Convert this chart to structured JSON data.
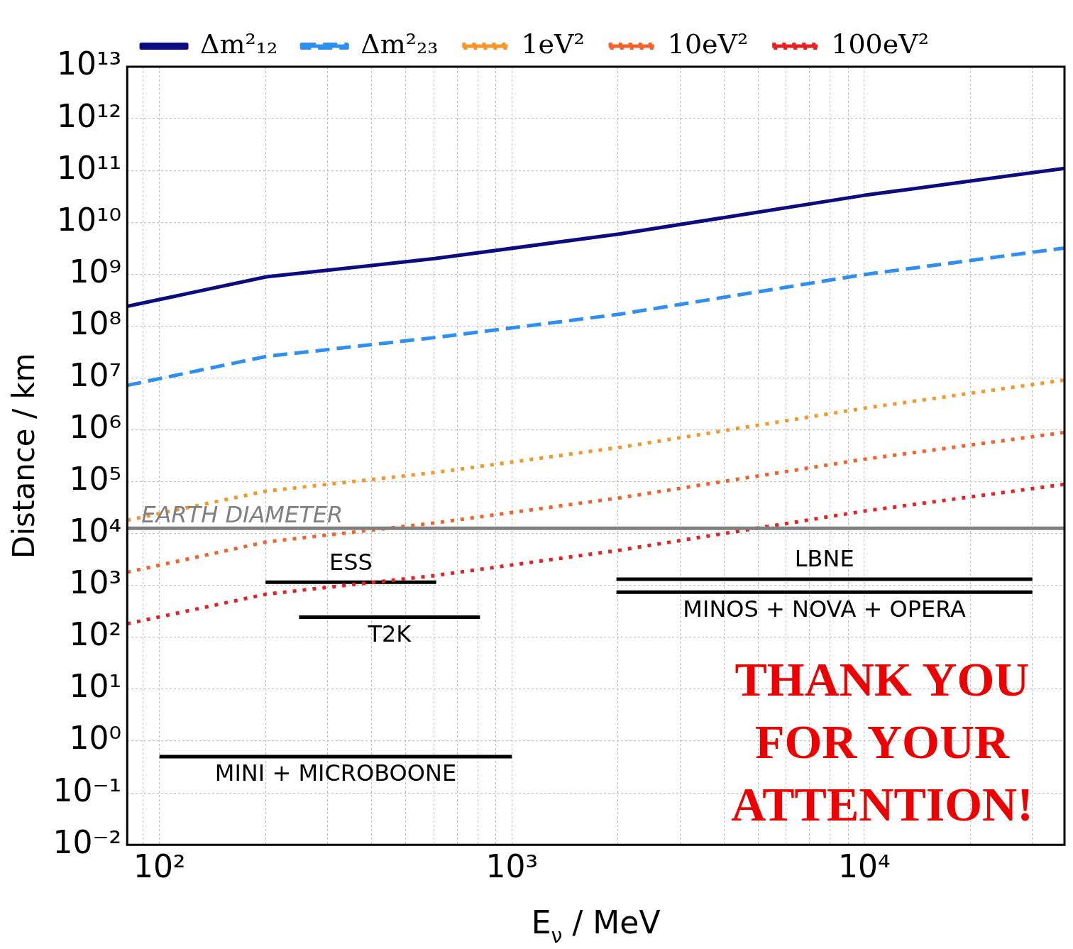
{
  "chart_data": {
    "type": "line",
    "xlabel": "E$_{ν}$ / MeV",
    "ylabel": "Distance / km",
    "log": "xy",
    "grid": true,
    "legend": "top",
    "marker": "none",
    "xlim": [
      81,
      37000
    ],
    "ylim": [
      0.01,
      10000000000000.0
    ],
    "xticks": [
      {
        "value": 90,
        "label": null
      },
      {
        "value": 100,
        "label": "10²"
      },
      {
        "value": 200,
        "label": null
      },
      {
        "value": 300,
        "label": null
      },
      {
        "value": 400,
        "label": null
      },
      {
        "value": 500,
        "label": null
      },
      {
        "value": 600,
        "label": null
      },
      {
        "value": 700,
        "label": null
      },
      {
        "value": 800,
        "label": null
      },
      {
        "value": 900,
        "label": null
      },
      {
        "value": 1000,
        "label": "10³"
      },
      {
        "value": 2000,
        "label": null
      },
      {
        "value": 3000,
        "label": null
      },
      {
        "value": 4000,
        "label": null
      },
      {
        "value": 5000,
        "label": null
      },
      {
        "value": 6000,
        "label": null
      },
      {
        "value": 7000,
        "label": null
      },
      {
        "value": 8000,
        "label": null
      },
      {
        "value": 9000,
        "label": null
      },
      {
        "value": 10000,
        "label": "10⁴"
      },
      {
        "value": 20000,
        "label": null
      },
      {
        "value": 30000,
        "label": null
      }
    ],
    "yticks": [
      {
        "value": 0.01,
        "label": "10⁻²"
      },
      {
        "value": 0.1,
        "label": "10⁻¹"
      },
      {
        "value": 1,
        "label": "10⁰"
      },
      {
        "value": 10,
        "label": "10¹"
      },
      {
        "value": 100,
        "label": "10²"
      },
      {
        "value": 1000,
        "label": "10³"
      },
      {
        "value": 10000,
        "label": "10⁴"
      },
      {
        "value": 100000,
        "label": "10⁵"
      },
      {
        "value": 1000000,
        "label": "10⁶"
      },
      {
        "value": 10000000,
        "label": "10⁷"
      },
      {
        "value": 100000000,
        "label": "10⁸"
      },
      {
        "value": 1000000000,
        "label": "10⁹"
      },
      {
        "value": 10000000000,
        "label": "10¹⁰"
      },
      {
        "value": 100000000000,
        "label": "10¹¹"
      },
      {
        "value": 1000000000000,
        "label": "10¹²"
      },
      {
        "value": 10000000000000,
        "label": "10¹³"
      }
    ],
    "x": [
      81,
      201,
      604,
      2030,
      4500,
      9950,
      37000
    ],
    "series": [
      {
        "name": "Δm²₁₂",
        "color": "#0c0c80",
        "line_style": "solid",
        "values": [
          240000000.0,
          890000000.0,
          2000000000.0,
          6000000000.0,
          14000000000.0,
          33000000000.0,
          110000000000.0
        ]
      },
      {
        "name": "Δm²₂₃",
        "color": "#2f8ff0",
        "line_style": "dashed",
        "values": [
          7200000.0,
          26000000.0,
          60000000.0,
          170000000.0,
          null,
          980000000.0,
          3200000000.0
        ]
      },
      {
        "name": "1eV²",
        "color": "#f5962a",
        "line_style": "dotted",
        "values": [
          18000.0,
          66000.0,
          150000.0,
          460000.0,
          null,
          2600000.0,
          9100000.0
        ]
      },
      {
        "name": "10eV²",
        "color": "#f2622a",
        "line_style": "dotted",
        "values": [
          1800.0,
          6900.0,
          16000.0,
          49000.0,
          null,
          270000.0,
          890000.0
        ]
      },
      {
        "name": "100eV²",
        "color": "#e52222",
        "line_style": "dotted",
        "values": [
          182,
          680,
          1550,
          4800,
          null,
          27000.0,
          89000.0
        ]
      },
      {
        "name": "ESS",
        "color": "#000000",
        "line_style": "solid",
        "x": [
          200,
          610
        ],
        "values": [
          1150,
          1150
        ]
      },
      {
        "name": "T2K",
        "color": "#000000",
        "line_style": "solid",
        "x": [
          249,
          812
        ],
        "values": [
          245,
          245
        ]
      },
      {
        "name": "LBNE",
        "color": "#000000",
        "line_style": "solid",
        "x": [
          1980,
          30000
        ],
        "values": [
          1320,
          1320
        ]
      },
      {
        "name": "MINOS + NOVA + OPERA",
        "color": "#000000",
        "line_style": "solid",
        "x": [
          1980,
          30000
        ],
        "values": [
          740,
          740
        ]
      },
      {
        "name": "MINI + MICROBOONE",
        "color": "#000000",
        "line_style": "solid",
        "x": [
          100,
          1000
        ],
        "values": [
          0.5,
          0.5
        ]
      }
    ],
    "ref_lines": [
      {
        "axis": "y",
        "value": 12700,
        "label": "EARTH DIAMETER",
        "color": "#808080"
      }
    ],
    "annotations": [
      "THANK YOU FOR YOUR ATTENTION!"
    ]
  }
}
